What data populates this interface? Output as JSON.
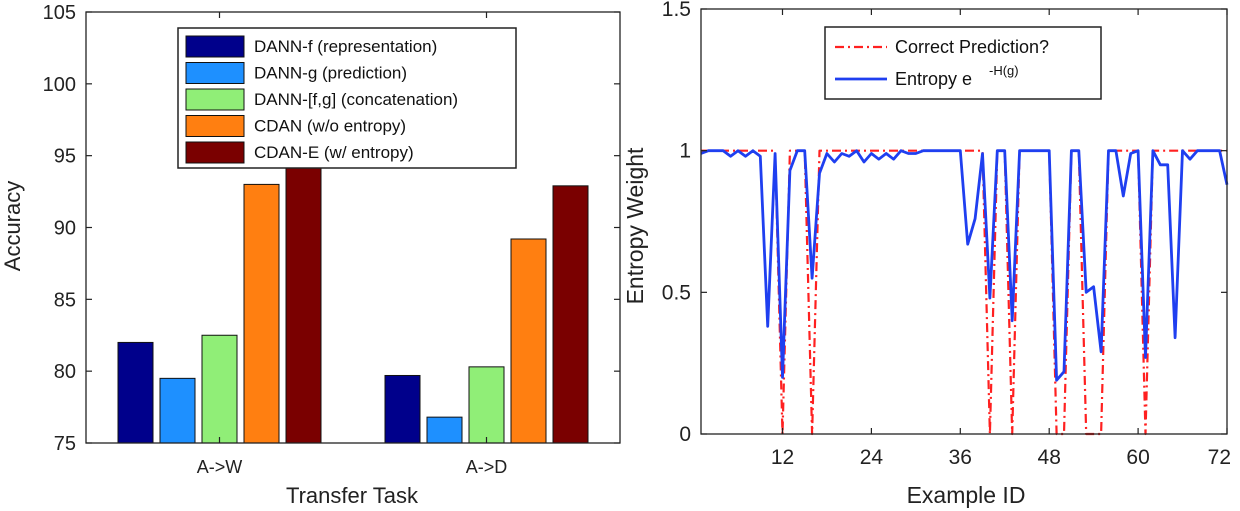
{
  "chart_data": [
    {
      "type": "bar",
      "xlabel": "Transfer Task",
      "ylabel": "Accuracy",
      "ylim": [
        75,
        105
      ],
      "yticks": [
        75,
        80,
        85,
        90,
        95,
        100,
        105
      ],
      "categories": [
        "A->W",
        "A->D"
      ],
      "legend_position": "top",
      "series": [
        {
          "name": "DANN-f (representation)",
          "color": "#00008b",
          "values": [
            82.0,
            79.7
          ]
        },
        {
          "name": "DANN-g (prediction)",
          "color": "#1e90ff",
          "values": [
            79.5,
            76.8
          ]
        },
        {
          "name": "DANN-[f,g] (concatenation)",
          "color": "#90ee77",
          "values": [
            82.5,
            80.3
          ]
        },
        {
          "name": "CDAN (w/o entropy)",
          "color": "#ff7f11",
          "values": [
            93.0,
            89.2
          ]
        },
        {
          "name": "CDAN-E (w/ entropy)",
          "color": "#7a0000",
          "values": [
            94.5,
            92.9
          ]
        }
      ]
    },
    {
      "type": "line",
      "xlabel": "Example ID",
      "ylabel": "Entropy Weight",
      "xlim": [
        1,
        72
      ],
      "ylim": [
        0,
        1.5
      ],
      "xticks": [
        12,
        24,
        36,
        48,
        60,
        72
      ],
      "yticks": [
        0,
        0.5,
        1,
        1.5
      ],
      "ytick_labels": [
        "0",
        "0.5",
        "1",
        "1.5"
      ],
      "legend_position": "top",
      "x": [
        1,
        2,
        3,
        4,
        5,
        6,
        7,
        8,
        9,
        10,
        11,
        12,
        13,
        14,
        15,
        16,
        17,
        18,
        19,
        20,
        21,
        22,
        23,
        24,
        25,
        26,
        27,
        28,
        29,
        30,
        31,
        32,
        33,
        34,
        35,
        36,
        37,
        38,
        39,
        40,
        41,
        42,
        43,
        44,
        45,
        46,
        47,
        48,
        49,
        50,
        51,
        52,
        53,
        54,
        55,
        56,
        57,
        58,
        59,
        60,
        61,
        62,
        63,
        64,
        65,
        66,
        67,
        68,
        69,
        70,
        71,
        72
      ],
      "series": [
        {
          "name": "Correct Prediction?",
          "style": "dash-dot",
          "color": "#ff2020",
          "values": [
            1,
            1,
            1,
            1,
            1,
            1,
            1,
            1,
            1,
            1,
            1,
            0,
            1,
            1,
            1,
            0,
            1,
            1,
            1,
            1,
            1,
            1,
            1,
            1,
            1,
            1,
            1,
            1,
            1,
            1,
            1,
            1,
            1,
            1,
            1,
            1,
            1,
            1,
            1,
            0,
            1,
            1,
            0,
            1,
            1,
            1,
            1,
            1,
            0,
            0,
            1,
            1,
            0,
            0,
            0,
            1,
            1,
            1,
            1,
            1,
            0,
            1,
            1,
            1,
            1,
            1,
            1,
            1,
            1,
            1,
            1,
            1
          ]
        },
        {
          "name": "Entropy e",
          "name_superscript": "-H(g)",
          "style": "solid",
          "color": "#1f3ff0",
          "values": [
            0.99,
            1,
            1,
            1,
            0.98,
            1,
            0.98,
            1,
            0.98,
            0.38,
            0.99,
            0.2,
            0.93,
            1,
            1,
            0.55,
            0.92,
            0.99,
            0.96,
            0.99,
            0.98,
            1,
            0.96,
            0.99,
            0.97,
            0.99,
            0.97,
            1,
            0.99,
            0.99,
            1,
            1,
            1,
            1,
            1,
            1,
            0.67,
            0.76,
            0.99,
            0.48,
            1,
            1,
            0.4,
            1,
            1,
            1,
            1,
            1,
            0.19,
            0.22,
            1,
            1,
            0.5,
            0.52,
            0.29,
            1,
            1,
            0.84,
            0.99,
            1,
            0.27,
            1,
            0.95,
            0.95,
            0.34,
            1,
            0.97,
            1,
            1,
            1,
            1,
            0.88
          ]
        }
      ]
    }
  ]
}
